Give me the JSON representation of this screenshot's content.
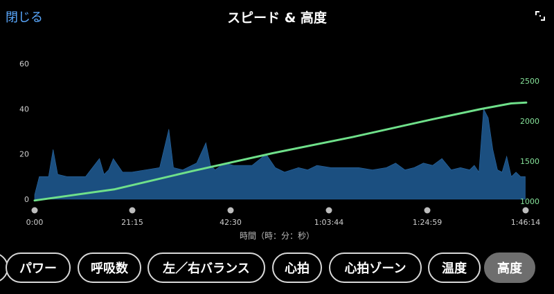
{
  "header": {
    "close_label": "閉じる",
    "title": "スピード & 高度"
  },
  "icons": {
    "expand": "expand-icon"
  },
  "colors": {
    "speed_fill": "#1b4f80",
    "altitude_line": "#6fe08a",
    "left_axis_text": "#cfcfcf",
    "right_axis_text": "#86e39a",
    "accent": "#5aa9ff"
  },
  "chart_data": {
    "type": "area",
    "xlabel": "時間（時：分：秒）",
    "x_ticks": [
      "0:00",
      "21:15",
      "42:30",
      "1:03:44",
      "1:24:59",
      "1:46:14"
    ],
    "left_axis": {
      "ylim": [
        0,
        60
      ],
      "ticks": [
        "0",
        "20",
        "40",
        "60"
      ]
    },
    "right_axis": {
      "ylim": [
        1000,
        2500
      ],
      "ticks": [
        "1000",
        "1500",
        "2000",
        "2500"
      ]
    },
    "series": [
      {
        "axis": "left",
        "type": "area",
        "x_minutes": [
          0,
          1,
          3,
          4,
          5,
          7,
          9,
          11,
          14,
          15,
          16,
          17,
          19,
          21,
          24,
          27,
          29,
          30,
          32,
          35,
          37,
          38,
          39,
          41,
          43,
          45,
          47,
          50,
          52,
          54,
          57,
          59,
          61,
          64,
          67,
          70,
          73,
          76,
          78,
          80,
          82,
          84,
          86,
          88,
          90,
          92,
          94,
          95,
          96,
          97,
          98,
          99,
          100,
          101,
          102,
          103,
          104,
          105,
          106
        ],
        "values": [
          2,
          10,
          10,
          22,
          11,
          10,
          10,
          10,
          18,
          11,
          13,
          18,
          12,
          12,
          13,
          14,
          31,
          14,
          13,
          16,
          25,
          15,
          13,
          16,
          15,
          15,
          15,
          20,
          14,
          12,
          14,
          13,
          15,
          14,
          14,
          14,
          13,
          14,
          16,
          13,
          14,
          16,
          15,
          18,
          13,
          14,
          13,
          15,
          12,
          40,
          36,
          22,
          13,
          12,
          19,
          10,
          12,
          10,
          10
        ]
      },
      {
        "axis": "right",
        "type": "line",
        "x_minutes": [
          0,
          106,
          210,
          315,
          420,
          525,
          590,
          630,
          650
        ],
        "values": [
          1010,
          1150,
          1380,
          1600,
          1800,
          2020,
          2150,
          2220,
          2230
        ]
      }
    ]
  },
  "chips": [
    {
      "label": "",
      "active": false
    },
    {
      "label": "パワー",
      "active": false
    },
    {
      "label": "呼吸数",
      "active": false
    },
    {
      "label": "左／右バランス",
      "active": false
    },
    {
      "label": "心拍",
      "active": false
    },
    {
      "label": "心拍ゾーン",
      "active": false
    },
    {
      "label": "温度",
      "active": false
    },
    {
      "label": "高度",
      "active": true
    }
  ]
}
